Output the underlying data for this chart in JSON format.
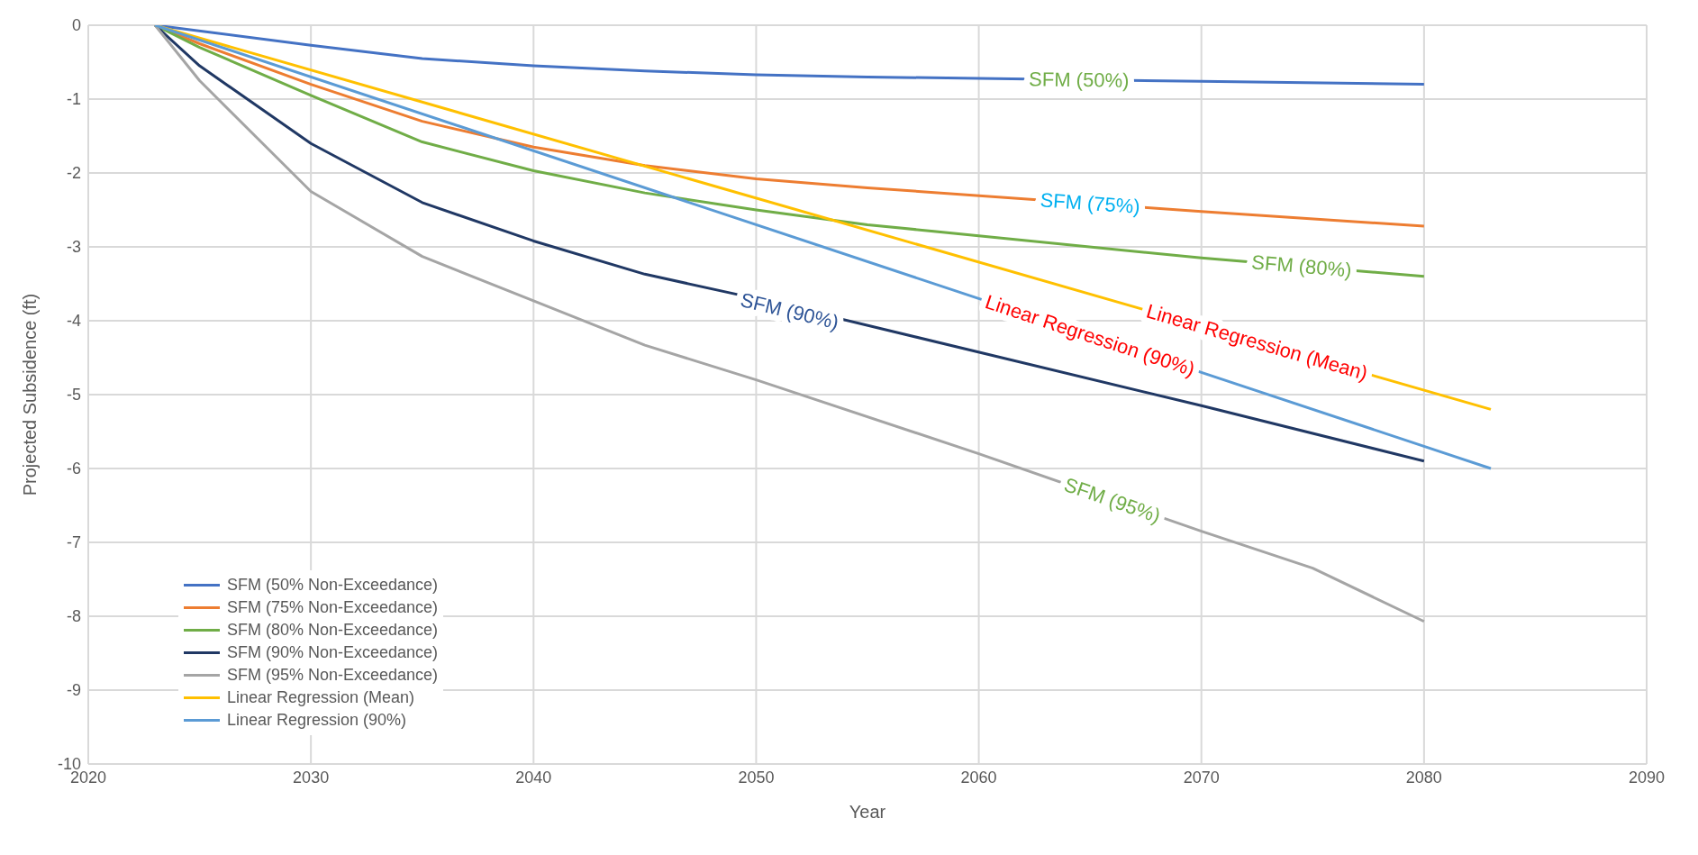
{
  "chart_data": {
    "type": "line",
    "xlabel": "Year",
    "ylabel": "Projected Subsidence (ft)",
    "xlim": [
      2020,
      2090
    ],
    "xticks": [
      2020,
      2030,
      2040,
      2050,
      2060,
      2070,
      2080,
      2090
    ],
    "ylim": [
      -10,
      0
    ],
    "yticks": [
      -10,
      -9,
      -8,
      -7,
      -6,
      -5,
      -4,
      -3,
      -2,
      -1,
      0
    ],
    "grid": true,
    "legend": "bottom left",
    "marker": "none",
    "line_style": "solid",
    "series": [
      {
        "name": "SFM (50% Non-Exceedance)",
        "color": "#4472c4",
        "x": [
          2023,
          2030,
          2035,
          2040,
          2045,
          2050,
          2055,
          2060,
          2070,
          2080
        ],
        "values": [
          0,
          -0.27,
          -0.45,
          -0.55,
          -0.62,
          -0.67,
          -0.7,
          -0.72,
          -0.76,
          -0.8
        ]
      },
      {
        "name": "SFM (75% Non-Exceedance)",
        "color": "#ed7d31",
        "x": [
          2023,
          2025,
          2030,
          2035,
          2040,
          2045,
          2050,
          2055,
          2070,
          2080
        ],
        "values": [
          0,
          -0.25,
          -0.8,
          -1.3,
          -1.65,
          -1.9,
          -2.08,
          -2.2,
          -2.52,
          -2.72
        ]
      },
      {
        "name": "SFM (80% Non-Exceedance)",
        "color": "#70ad47",
        "x": [
          2023,
          2025,
          2030,
          2035,
          2040,
          2045,
          2050,
          2055,
          2060,
          2070,
          2080
        ],
        "values": [
          0,
          -0.3,
          -0.95,
          -1.58,
          -1.97,
          -2.27,
          -2.5,
          -2.7,
          -2.85,
          -3.15,
          -3.4
        ]
      },
      {
        "name": "SFM (90% Non-Exceedance)",
        "color": "#203864",
        "x": [
          2023,
          2025,
          2030,
          2035,
          2040,
          2045,
          2050,
          2070,
          2080
        ],
        "values": [
          0,
          -0.55,
          -1.6,
          -2.4,
          -2.92,
          -3.37,
          -3.7,
          -5.15,
          -5.9
        ]
      },
      {
        "name": "SFM (95% Non-Exceedance)",
        "color": "#a5a5a5",
        "x": [
          2023,
          2025,
          2030,
          2035,
          2040,
          2045,
          2050,
          2060,
          2070,
          2075,
          2080
        ],
        "values": [
          0,
          -0.75,
          -2.25,
          -3.13,
          -3.73,
          -4.33,
          -4.8,
          -5.8,
          -6.85,
          -7.35,
          -8.07
        ]
      },
      {
        "name": "Linear Regression (Mean)",
        "color": "#ffc000",
        "x": [
          2023,
          2083
        ],
        "values": [
          0,
          -5.2
        ]
      },
      {
        "name": "Linear Regression (90%)",
        "color": "#5b9bd5",
        "x": [
          2023,
          2083
        ],
        "values": [
          0,
          -6.0
        ]
      }
    ],
    "annotations": [
      {
        "text": "SFM (50%)",
        "x": 2064.5,
        "y": -0.738
      },
      {
        "text": "SFM (75%)",
        "x": 2065,
        "y": -2.41
      },
      {
        "text": "SFM (80%)",
        "x": 2074.5,
        "y": -3.26
      },
      {
        "text": "SFM (90%)",
        "x": 2051.5,
        "y": -3.87
      },
      {
        "text": "SFM (95%)",
        "x": 2066,
        "y": -6.43
      },
      {
        "text": "Linear Regression (Mean)",
        "x": 2072.5,
        "y": -4.29
      },
      {
        "text": "Linear Regression (90%)",
        "x": 2065,
        "y": -4.2
      }
    ]
  }
}
